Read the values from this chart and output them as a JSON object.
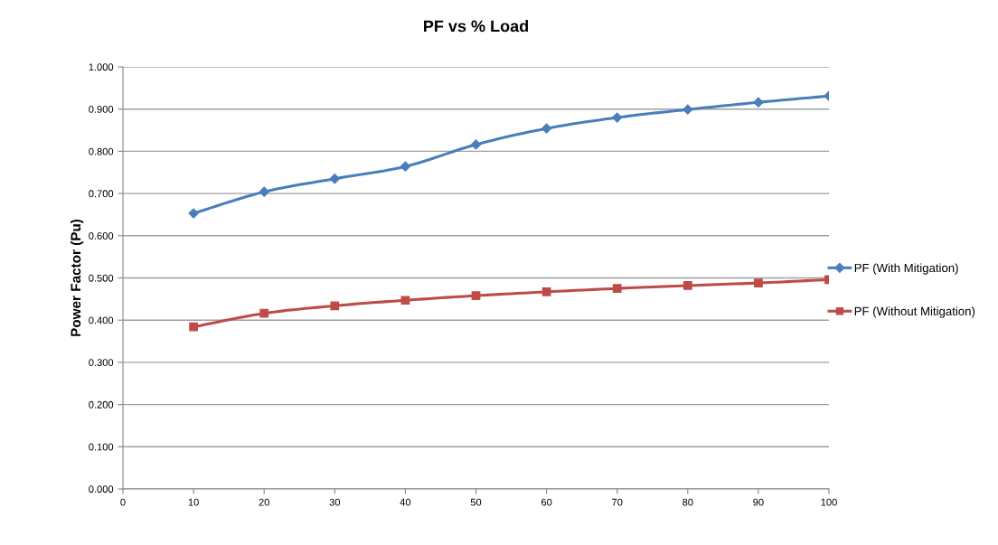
{
  "chart_data": {
    "type": "line",
    "title": "PF vs % Load",
    "ylabel": "Power Factor (Pu)",
    "x": [
      10,
      20,
      30,
      40,
      50,
      60,
      70,
      80,
      90,
      100
    ],
    "series": [
      {
        "name": "PF (With Mitigation)",
        "color": "#4a7ebb",
        "marker": "diamond",
        "values": [
          0.653,
          0.704,
          0.735,
          0.764,
          0.816,
          0.854,
          0.88,
          0.899,
          0.916,
          0.931
        ]
      },
      {
        "name": "PF (Without Mitigation)",
        "color": "#be4b48",
        "marker": "square",
        "values": [
          0.384,
          0.416,
          0.434,
          0.447,
          0.458,
          0.467,
          0.475,
          0.482,
          0.488,
          0.496
        ]
      }
    ],
    "xlim": [
      0,
      100
    ],
    "xticks": [
      0,
      10,
      20,
      30,
      40,
      50,
      60,
      70,
      80,
      90,
      100
    ],
    "ylim": [
      0,
      1
    ],
    "yticks": [
      {
        "value": 0,
        "label": "0.000"
      },
      {
        "value": 0.1,
        "label": "0.100"
      },
      {
        "value": 0.2,
        "label": "0.200"
      },
      {
        "value": 0.3,
        "label": "0.300"
      },
      {
        "value": 0.4,
        "label": "0.400"
      },
      {
        "value": 0.5,
        "label": "0.500"
      },
      {
        "value": 0.6,
        "label": "0.600"
      },
      {
        "value": 0.7,
        "label": "0.700"
      },
      {
        "value": 0.8,
        "label": "0.800"
      },
      {
        "value": 0.9,
        "label": "0.900"
      },
      {
        "value": 1,
        "label": "1.000"
      }
    ],
    "grid": "y",
    "legend": "right",
    "line_style": "solid"
  }
}
